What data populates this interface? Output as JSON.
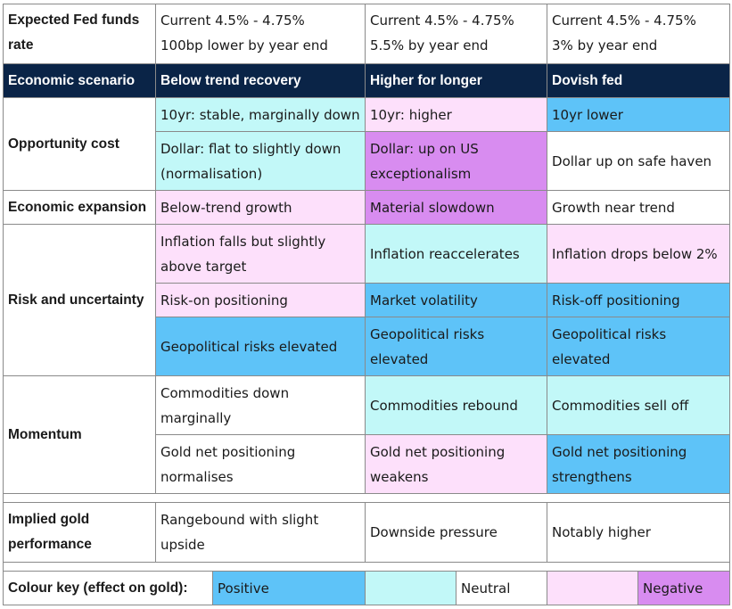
{
  "fed": {
    "label": "Expected Fed funds rate",
    "cols": [
      [
        "Current 4.5% - 4.75%",
        "100bp lower by year end"
      ],
      [
        "Current 4.5% - 4.75%",
        "5.5% by year end"
      ],
      [
        "Current 4.5% - 4.75%",
        "3% by year end"
      ]
    ]
  },
  "header": {
    "label": "Economic scenario",
    "cols": [
      "Below trend recovery",
      "Higher for longer",
      "Dovish fed"
    ]
  },
  "opportunity": {
    "label": "Opportunity cost",
    "rows": [
      [
        "10yr: stable, marginally down",
        "10yr: higher",
        "10yr lower"
      ],
      [
        "Dollar: flat to slightly down (normalisation)",
        "Dollar: up on US exceptionalism",
        "Dollar up on safe haven"
      ]
    ]
  },
  "expansion": {
    "label": "Economic expansion",
    "row": [
      "Below-trend growth",
      "Material slowdown",
      "Growth near trend"
    ]
  },
  "risk": {
    "label": "Risk and uncertainty",
    "rows": [
      [
        "Inflation falls but slightly above target",
        "Inflation reaccelerates",
        "Inflation drops below 2%"
      ],
      [
        "Risk-on positioning",
        "Market volatility",
        "Risk-off positioning"
      ],
      [
        "Geopolitical risks elevated",
        "Geopolitical risks elevated",
        "Geopolitical risks elevated"
      ]
    ]
  },
  "momentum": {
    "label": "Momentum",
    "rows": [
      [
        "Commodities down marginally",
        "Commodities rebound",
        "Commodities sell off"
      ],
      [
        "Gold net positioning normalises",
        "Gold net positioning weakens",
        "Gold net positioning strengthens"
      ]
    ]
  },
  "implied": {
    "label": "Implied gold performance",
    "row": [
      "Rangebound with slight upside",
      "Downside pressure",
      "Notably higher"
    ]
  },
  "key": {
    "label": "Colour key (effect on gold):",
    "positive": "Positive",
    "neutral": "Neutral",
    "negative": "Negative"
  },
  "colors": {
    "navy": "#0a2447",
    "positive": "#5ec3f8",
    "neutral_light": "#c2f8f8",
    "negative_light": "#fde0fb",
    "negative": "#d88cf0"
  }
}
